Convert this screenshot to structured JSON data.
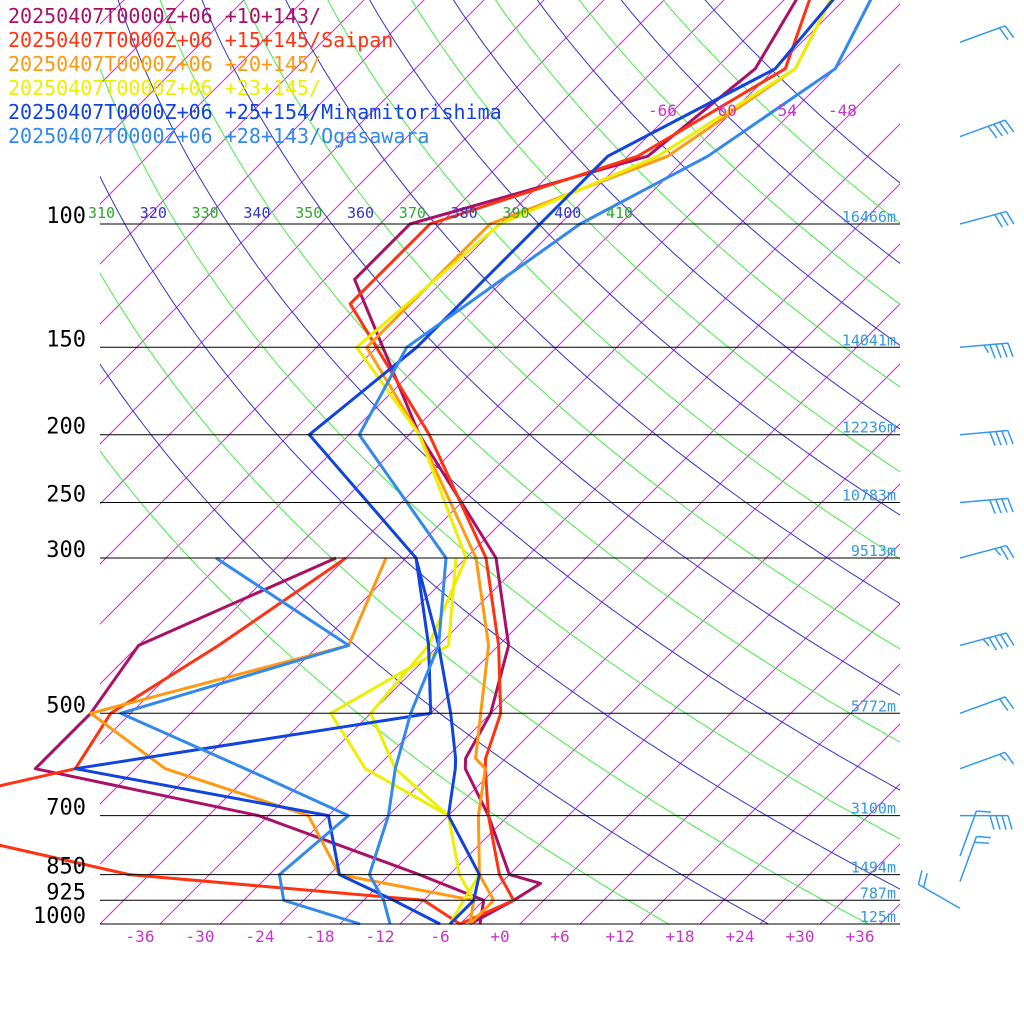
{
  "chart_data": {
    "type": "line",
    "title": "",
    "xlabel": "",
    "ylabel": "",
    "xlim": [
      -40,
      40
    ],
    "ylim_hpa": [
      1000,
      100
    ],
    "log_pressure_axis": true,
    "grid": true,
    "pressure_levels": [
      100,
      150,
      200,
      250,
      300,
      500,
      700,
      850,
      925,
      1000
    ],
    "pressure_labels": [
      "100",
      "150",
      "200",
      "250",
      "300",
      "500",
      "700",
      "850",
      "925",
      "1000"
    ],
    "height_labels": [
      {
        "p": 100,
        "label": "16466m"
      },
      {
        "p": 150,
        "label": "14041m"
      },
      {
        "p": 200,
        "label": "12236m"
      },
      {
        "p": 250,
        "label": "10783m"
      },
      {
        "p": 300,
        "label": "9513m"
      },
      {
        "p": 500,
        "label": "5772m"
      },
      {
        "p": 700,
        "label": "3100m"
      },
      {
        "p": 850,
        "label": "1494m"
      },
      {
        "p": 925,
        "label": "787m"
      },
      {
        "p": 1000,
        "label": "125m"
      }
    ],
    "x_tick_values": [
      -36,
      -30,
      -24,
      -18,
      -12,
      -6,
      0,
      6,
      12,
      18,
      24,
      30,
      36
    ],
    "x_tick_labels": [
      "-36",
      "-30",
      "-24",
      "-18",
      "-12",
      "-6",
      "+0",
      "+6",
      "+12",
      "+18",
      "+24",
      "+30",
      "+36"
    ],
    "top_isotherm_labels": [
      "-66",
      "-60",
      "-54",
      "-48"
    ],
    "theta_labels": [
      "310",
      "320",
      "330",
      "340",
      "350",
      "360",
      "370",
      "380",
      "390",
      "400",
      "410"
    ],
    "theta_colors": [
      "#2aaa2a",
      "#3333cc",
      "#2aaa2a",
      "#3333cc",
      "#2aaa2a",
      "#3333cc",
      "#2aaa2a",
      "#3333cc",
      "#2aaa2a",
      "#3333cc",
      "#2aaa2a"
    ],
    "colors": {
      "isotherm": "#dd22dd",
      "adiabat_green": "#44ee44",
      "adiabat_blue": "#3333cc",
      "pressure_line": "#000000",
      "height_label": "#3399dd",
      "wind_barb": "#3399ee",
      "axis_label": "#cc33cc"
    },
    "series": [
      {
        "name": "20250407T0000Z+06 +10+143/",
        "color": "#aa1166",
        "temperature": [
          [
            40,
            -65
          ],
          [
            60,
            -60
          ],
          [
            80,
            -62
          ],
          [
            100,
            -79
          ],
          [
            120,
            -79
          ],
          [
            200,
            -57
          ],
          [
            300,
            -37
          ],
          [
            400,
            -27
          ],
          [
            500,
            -22
          ],
          [
            580,
            -20
          ],
          [
            600,
            -19
          ],
          [
            700,
            -12
          ],
          [
            850,
            -4
          ],
          [
            875,
            0
          ],
          [
            925,
            -1
          ],
          [
            1000,
            -3
          ]
        ],
        "dewpoint": [
          [
            300,
            -53
          ],
          [
            400,
            -64
          ],
          [
            500,
            -62
          ],
          [
            600,
            -62
          ],
          [
            700,
            -35
          ],
          [
            850,
            -13
          ],
          [
            925,
            -4
          ],
          [
            1000,
            -2
          ]
        ]
      },
      {
        "name": "20250407T0000Z+06 +15+145/Saipan",
        "color": "#ff3311",
        "temperature": [
          [
            40,
            -65
          ],
          [
            60,
            -57
          ],
          [
            80,
            -63
          ],
          [
            100,
            -77
          ],
          [
            130,
            -77
          ],
          [
            200,
            -56
          ],
          [
            300,
            -38
          ],
          [
            400,
            -28
          ],
          [
            500,
            -21
          ],
          [
            580,
            -18
          ],
          [
            600,
            -17
          ],
          [
            700,
            -12
          ],
          [
            850,
            -5
          ],
          [
            925,
            -1
          ],
          [
            1000,
            -4
          ]
        ],
        "dewpoint": [
          [
            300,
            -52
          ],
          [
            400,
            -56
          ],
          [
            500,
            -60
          ],
          [
            600,
            -58
          ],
          [
            700,
            -74
          ],
          [
            850,
            -42
          ],
          [
            925,
            -10
          ],
          [
            1000,
            -4
          ]
        ]
      },
      {
        "name": "20250407T0000Z+06 +20+145/",
        "color": "#ff9911",
        "temperature": [
          [
            40,
            -62
          ],
          [
            60,
            -56
          ],
          [
            80,
            -60
          ],
          [
            100,
            -71
          ],
          [
            150,
            -71
          ],
          [
            200,
            -57
          ],
          [
            300,
            -39
          ],
          [
            400,
            -29
          ],
          [
            500,
            -23
          ],
          [
            580,
            -19
          ],
          [
            600,
            -17
          ],
          [
            700,
            -13
          ],
          [
            850,
            -7
          ],
          [
            925,
            -3
          ],
          [
            1000,
            -3
          ]
        ],
        "dewpoint": [
          [
            300,
            -48
          ],
          [
            400,
            -43
          ],
          [
            500,
            -62
          ],
          [
            600,
            -49
          ],
          [
            700,
            -30
          ],
          [
            850,
            -21
          ],
          [
            925,
            -5
          ],
          [
            1000,
            -3
          ]
        ]
      },
      {
        "name": "20250407T0000Z+06 +23+145/",
        "color": "#eeee00",
        "temperature": [
          [
            40,
            -62
          ],
          [
            60,
            -56
          ],
          [
            80,
            -61
          ],
          [
            100,
            -70
          ],
          [
            150,
            -72
          ],
          [
            200,
            -57
          ],
          [
            300,
            -40
          ],
          [
            400,
            -35
          ],
          [
            500,
            -34
          ],
          [
            600,
            -26
          ],
          [
            700,
            -16
          ],
          [
            850,
            -7
          ],
          [
            925,
            -6
          ],
          [
            1000,
            -5
          ]
        ],
        "dewpoint": [
          [
            300,
            -41
          ],
          [
            400,
            -33
          ],
          [
            500,
            -38
          ],
          [
            600,
            -29
          ],
          [
            700,
            -16
          ],
          [
            850,
            -9
          ],
          [
            925,
            -5
          ],
          [
            1000,
            -5
          ]
        ]
      },
      {
        "name": "20250407T0000Z+06 +25+154/Minamitorishima",
        "color": "#1144dd",
        "temperature": [
          [
            40,
            -60
          ],
          [
            60,
            -58
          ],
          [
            80,
            -66
          ],
          [
            100,
            -66
          ],
          [
            150,
            -66
          ],
          [
            200,
            -68
          ],
          [
            300,
            -45
          ],
          [
            400,
            -34
          ],
          [
            500,
            -26
          ],
          [
            580,
            -21
          ],
          [
            600,
            -20
          ],
          [
            700,
            -16
          ],
          [
            850,
            -7
          ],
          [
            925,
            -5
          ],
          [
            1000,
            -5
          ]
        ],
        "dewpoint": [
          [
            300,
            -45
          ],
          [
            400,
            -35
          ],
          [
            500,
            -28
          ],
          [
            600,
            -58
          ],
          [
            700,
            -28
          ],
          [
            850,
            -21
          ],
          [
            925,
            -13
          ],
          [
            1000,
            -6
          ]
        ]
      },
      {
        "name": "20250407T0000Z+06 +28+143/Ogasawara",
        "color": "#3388ee",
        "temperature": [
          [
            40,
            -58
          ],
          [
            60,
            -52
          ],
          [
            80,
            -56
          ],
          [
            100,
            -62
          ],
          [
            150,
            -67
          ],
          [
            200,
            -63
          ],
          [
            300,
            -42
          ],
          [
            400,
            -34
          ],
          [
            500,
            -30
          ],
          [
            600,
            -26
          ],
          [
            700,
            -22
          ],
          [
            850,
            -18
          ],
          [
            925,
            -14
          ],
          [
            1000,
            -11
          ]
        ],
        "dewpoint": [
          [
            300,
            -65
          ],
          [
            400,
            -43
          ],
          [
            500,
            -59
          ],
          [
            600,
            -41
          ],
          [
            700,
            -26
          ],
          [
            850,
            -27
          ],
          [
            925,
            -24
          ],
          [
            1000,
            -14
          ]
        ]
      }
    ],
    "wind_barbs": [
      {
        "p": 55,
        "dir": 250,
        "speed": 20
      },
      {
        "p": 75,
        "dir": 250,
        "speed": 40
      },
      {
        "p": 100,
        "dir": 255,
        "speed": 30
      },
      {
        "p": 150,
        "dir": 265,
        "speed": 45
      },
      {
        "p": 200,
        "dir": 265,
        "speed": 40
      },
      {
        "p": 250,
        "dir": 265,
        "speed": 40
      },
      {
        "p": 300,
        "dir": 255,
        "speed": 25
      },
      {
        "p": 400,
        "dir": 255,
        "speed": 45
      },
      {
        "p": 500,
        "dir": 250,
        "speed": 20
      },
      {
        "p": 600,
        "dir": 250,
        "speed": 15
      },
      {
        "p": 700,
        "dir": 270,
        "speed": 40
      },
      {
        "p": 800,
        "dir": 200,
        "speed": 10
      },
      {
        "p": 870,
        "dir": 200,
        "speed": 20
      },
      {
        "p": 950,
        "dir": 120,
        "speed": 20
      }
    ]
  }
}
